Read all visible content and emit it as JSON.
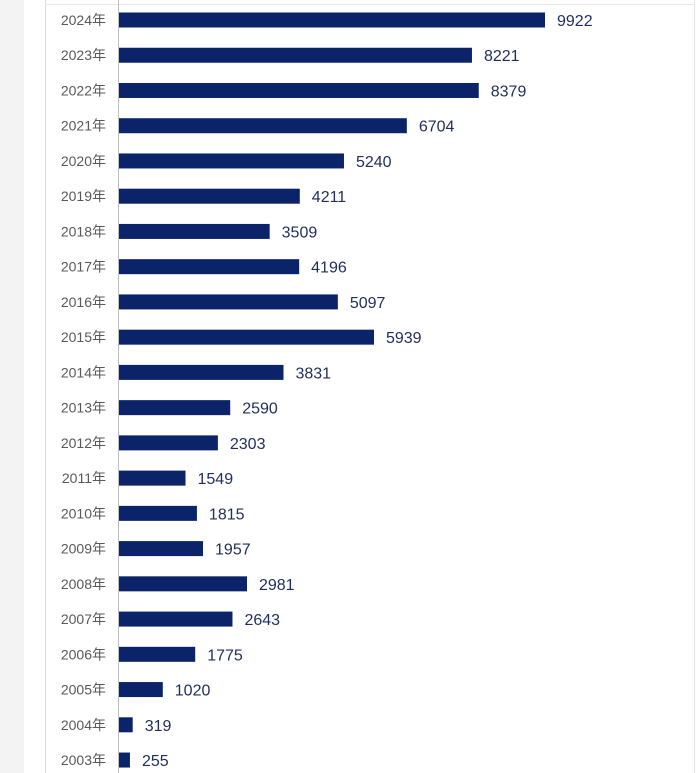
{
  "chart_data": {
    "type": "bar",
    "orientation": "horizontal",
    "categories": [
      "2024年",
      "2023年",
      "2022年",
      "2021年",
      "2020年",
      "2019年",
      "2018年",
      "2017年",
      "2016年",
      "2015年",
      "2014年",
      "2013年",
      "2012年",
      "2011年",
      "2010年",
      "2009年",
      "2008年",
      "2007年",
      "2006年",
      "2005年",
      "2004年",
      "2003年"
    ],
    "values": [
      9922,
      8221,
      8379,
      6704,
      5240,
      4211,
      3509,
      4196,
      5097,
      5939,
      3831,
      2590,
      2303,
      1549,
      1815,
      1957,
      2981,
      2643,
      1775,
      1020,
      319,
      255
    ],
    "title": "",
    "xlabel": "",
    "ylabel": "",
    "xlim": [
      0,
      10000
    ],
    "grid": false,
    "data_labels": true,
    "bar_color": "#0b2469"
  }
}
